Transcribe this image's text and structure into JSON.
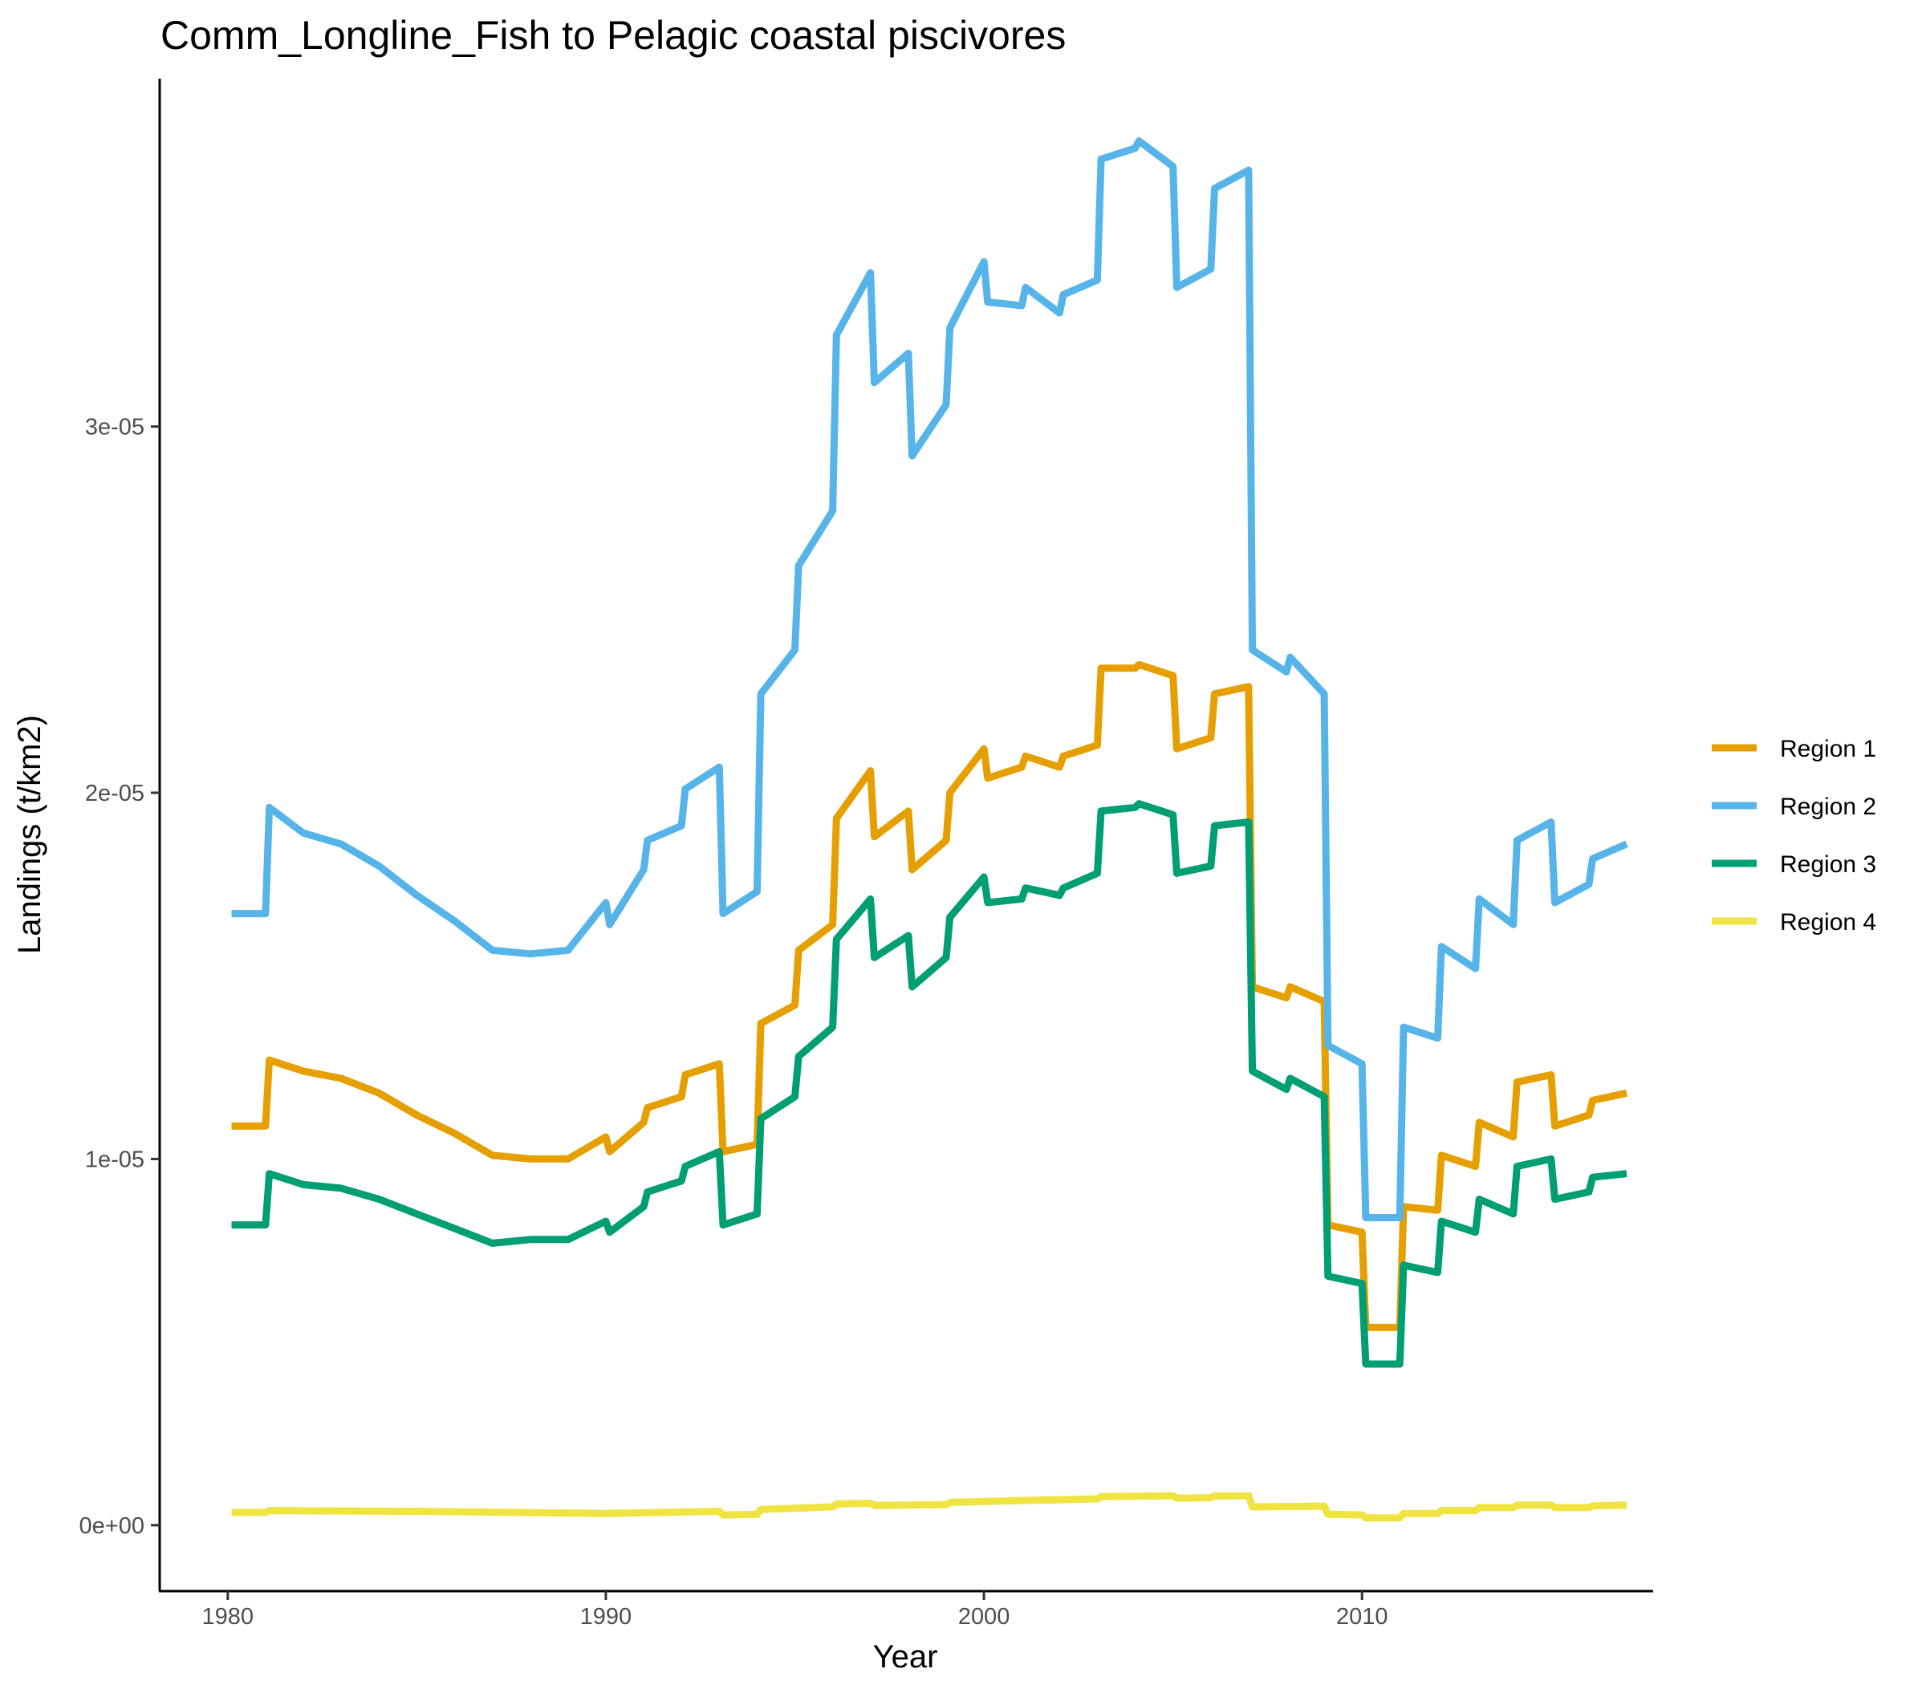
{
  "chart_data": {
    "type": "line",
    "title": "Comm_Longline_Fish to Pelagic coastal piscivores",
    "xlabel": "Year",
    "ylabel": "Landings (t/km2)",
    "xlim": [
      1978.2,
      2017.7
    ],
    "ylim": [
      -1.8e-06,
      3.95e-05
    ],
    "x_ticks": [
      1980,
      1990,
      2000,
      2010
    ],
    "x_tick_labels": [
      "1980",
      "1990",
      "2000",
      "2010"
    ],
    "y_ticks": [
      0,
      1e-05,
      2e-05,
      3e-05
    ],
    "y_tick_labels": [
      "0e+00",
      "1e-05",
      "2e-05",
      "3e-05"
    ],
    "legend_position": "right",
    "grid": false,
    "series": [
      {
        "name": "Region 1",
        "color": "#E69F00",
        "points": [
          [
            1980.1,
            1.09e-05
          ],
          [
            1981,
            1.09e-05
          ],
          [
            1981.1,
            1.27e-05
          ],
          [
            1982,
            1.24e-05
          ],
          [
            1983,
            1.22e-05
          ],
          [
            1984,
            1.18e-05
          ],
          [
            1985,
            1.12e-05
          ],
          [
            1986,
            1.07e-05
          ],
          [
            1987,
            1.01e-05
          ],
          [
            1988,
            1e-05
          ],
          [
            1989,
            1e-05
          ],
          [
            1990,
            1.06e-05
          ],
          [
            1990.1,
            1.02e-05
          ],
          [
            1991,
            1.1e-05
          ],
          [
            1991.1,
            1.14e-05
          ],
          [
            1992,
            1.17e-05
          ],
          [
            1992.1,
            1.23e-05
          ],
          [
            1993,
            1.26e-05
          ],
          [
            1993.1,
            1.02e-05
          ],
          [
            1994,
            1.04e-05
          ],
          [
            1994.1,
            1.37e-05
          ],
          [
            1995,
            1.42e-05
          ],
          [
            1995.1,
            1.57e-05
          ],
          [
            1996,
            1.64e-05
          ],
          [
            1996.1,
            1.93e-05
          ],
          [
            1997,
            2.06e-05
          ],
          [
            1997.1,
            1.88e-05
          ],
          [
            1998,
            1.95e-05
          ],
          [
            1998.1,
            1.79e-05
          ],
          [
            1999,
            1.87e-05
          ],
          [
            1999.1,
            2e-05
          ],
          [
            2000,
            2.12e-05
          ],
          [
            2000.1,
            2.04e-05
          ],
          [
            2001,
            2.07e-05
          ],
          [
            2001.1,
            2.1e-05
          ],
          [
            2002,
            2.07e-05
          ],
          [
            2002.1,
            2.1e-05
          ],
          [
            2003,
            2.13e-05
          ],
          [
            2003.1,
            2.34e-05
          ],
          [
            2004,
            2.34e-05
          ],
          [
            2004.1,
            2.35e-05
          ],
          [
            2005,
            2.32e-05
          ],
          [
            2005.1,
            2.12e-05
          ],
          [
            2006,
            2.15e-05
          ],
          [
            2006.1,
            2.27e-05
          ],
          [
            2007,
            2.29e-05
          ],
          [
            2007.1,
            1.47e-05
          ],
          [
            2008,
            1.44e-05
          ],
          [
            2008.1,
            1.47e-05
          ],
          [
            2009,
            1.43e-05
          ],
          [
            2009.1,
            8.2e-06
          ],
          [
            2010,
            8e-06
          ],
          [
            2010.1,
            5.4e-06
          ],
          [
            2011,
            5.4e-06
          ],
          [
            2011.1,
            8.7e-06
          ],
          [
            2012,
            8.6e-06
          ],
          [
            2012.1,
            1.01e-05
          ],
          [
            2013,
            9.8e-06
          ],
          [
            2013.1,
            1.1e-05
          ],
          [
            2014,
            1.06e-05
          ],
          [
            2014.1,
            1.21e-05
          ],
          [
            2015,
            1.23e-05
          ],
          [
            2015.1,
            1.09e-05
          ],
          [
            2016,
            1.12e-05
          ],
          [
            2016.1,
            1.16e-05
          ],
          [
            2017,
            1.18e-05
          ]
        ]
      },
      {
        "name": "Region 2",
        "color": "#56B4E9",
        "points": [
          [
            1980.1,
            1.67e-05
          ],
          [
            1981,
            1.67e-05
          ],
          [
            1981.1,
            1.96e-05
          ],
          [
            1982,
            1.89e-05
          ],
          [
            1983,
            1.86e-05
          ],
          [
            1984,
            1.8e-05
          ],
          [
            1985,
            1.72e-05
          ],
          [
            1986,
            1.65e-05
          ],
          [
            1987,
            1.57e-05
          ],
          [
            1988,
            1.56e-05
          ],
          [
            1989,
            1.57e-05
          ],
          [
            1990,
            1.7e-05
          ],
          [
            1990.1,
            1.64e-05
          ],
          [
            1991,
            1.79e-05
          ],
          [
            1991.1,
            1.87e-05
          ],
          [
            1992,
            1.91e-05
          ],
          [
            1992.1,
            2.01e-05
          ],
          [
            1993,
            2.07e-05
          ],
          [
            1993.1,
            1.67e-05
          ],
          [
            1994,
            1.73e-05
          ],
          [
            1994.1,
            2.27e-05
          ],
          [
            1995,
            2.39e-05
          ],
          [
            1995.1,
            2.62e-05
          ],
          [
            1996,
            2.77e-05
          ],
          [
            1996.1,
            3.25e-05
          ],
          [
            1997,
            3.42e-05
          ],
          [
            1997.1,
            3.12e-05
          ],
          [
            1998,
            3.2e-05
          ],
          [
            1998.1,
            2.92e-05
          ],
          [
            1999,
            3.06e-05
          ],
          [
            1999.1,
            3.27e-05
          ],
          [
            2000,
            3.45e-05
          ],
          [
            2000.1,
            3.34e-05
          ],
          [
            2001,
            3.33e-05
          ],
          [
            2001.1,
            3.38e-05
          ],
          [
            2002,
            3.31e-05
          ],
          [
            2002.1,
            3.36e-05
          ],
          [
            2003,
            3.4e-05
          ],
          [
            2003.1,
            3.73e-05
          ],
          [
            2004,
            3.76e-05
          ],
          [
            2004.1,
            3.78e-05
          ],
          [
            2005,
            3.71e-05
          ],
          [
            2005.1,
            3.38e-05
          ],
          [
            2006,
            3.43e-05
          ],
          [
            2006.1,
            3.65e-05
          ],
          [
            2007,
            3.7e-05
          ],
          [
            2007.1,
            2.39e-05
          ],
          [
            2008,
            2.33e-05
          ],
          [
            2008.1,
            2.37e-05
          ],
          [
            2009,
            2.27e-05
          ],
          [
            2009.1,
            1.31e-05
          ],
          [
            2010,
            1.26e-05
          ],
          [
            2010.1,
            8.4e-06
          ],
          [
            2011,
            8.4e-06
          ],
          [
            2011.1,
            1.36e-05
          ],
          [
            2012,
            1.33e-05
          ],
          [
            2012.1,
            1.58e-05
          ],
          [
            2013,
            1.52e-05
          ],
          [
            2013.1,
            1.71e-05
          ],
          [
            2014,
            1.64e-05
          ],
          [
            2014.1,
            1.87e-05
          ],
          [
            2015,
            1.92e-05
          ],
          [
            2015.1,
            1.7e-05
          ],
          [
            2016,
            1.75e-05
          ],
          [
            2016.1,
            1.82e-05
          ],
          [
            2017,
            1.86e-05
          ]
        ]
      },
      {
        "name": "Region 3",
        "color": "#009E73",
        "points": [
          [
            1980.1,
            8.2e-06
          ],
          [
            1981,
            8.2e-06
          ],
          [
            1981.1,
            9.6e-06
          ],
          [
            1982,
            9.3e-06
          ],
          [
            1983,
            9.2e-06
          ],
          [
            1984,
            8.9e-06
          ],
          [
            1985,
            8.5e-06
          ],
          [
            1986,
            8.1e-06
          ],
          [
            1987,
            7.7e-06
          ],
          [
            1988,
            7.8e-06
          ],
          [
            1989,
            7.8e-06
          ],
          [
            1990,
            8.3e-06
          ],
          [
            1990.1,
            8e-06
          ],
          [
            1991,
            8.7e-06
          ],
          [
            1991.1,
            9.1e-06
          ],
          [
            1992,
            9.4e-06
          ],
          [
            1992.1,
            9.8e-06
          ],
          [
            1993,
            1.02e-05
          ],
          [
            1993.1,
            8.2e-06
          ],
          [
            1994,
            8.5e-06
          ],
          [
            1994.1,
            1.11e-05
          ],
          [
            1995,
            1.17e-05
          ],
          [
            1995.1,
            1.28e-05
          ],
          [
            1996,
            1.36e-05
          ],
          [
            1996.1,
            1.6e-05
          ],
          [
            1997,
            1.71e-05
          ],
          [
            1997.1,
            1.55e-05
          ],
          [
            1998,
            1.61e-05
          ],
          [
            1998.1,
            1.47e-05
          ],
          [
            1999,
            1.55e-05
          ],
          [
            1999.1,
            1.66e-05
          ],
          [
            2000,
            1.77e-05
          ],
          [
            2000.1,
            1.7e-05
          ],
          [
            2001,
            1.71e-05
          ],
          [
            2001.1,
            1.74e-05
          ],
          [
            2002,
            1.72e-05
          ],
          [
            2002.1,
            1.74e-05
          ],
          [
            2003,
            1.78e-05
          ],
          [
            2003.1,
            1.95e-05
          ],
          [
            2004,
            1.96e-05
          ],
          [
            2004.1,
            1.97e-05
          ],
          [
            2005,
            1.94e-05
          ],
          [
            2005.1,
            1.78e-05
          ],
          [
            2006,
            1.8e-05
          ],
          [
            2006.1,
            1.91e-05
          ],
          [
            2007,
            1.92e-05
          ],
          [
            2007.1,
            1.24e-05
          ],
          [
            2008,
            1.19e-05
          ],
          [
            2008.1,
            1.22e-05
          ],
          [
            2009,
            1.17e-05
          ],
          [
            2009.1,
            6.8e-06
          ],
          [
            2010,
            6.6e-06
          ],
          [
            2010.1,
            4.4e-06
          ],
          [
            2011,
            4.4e-06
          ],
          [
            2011.1,
            7.1e-06
          ],
          [
            2012,
            6.9e-06
          ],
          [
            2012.1,
            8.3e-06
          ],
          [
            2013,
            8e-06
          ],
          [
            2013.1,
            8.9e-06
          ],
          [
            2014,
            8.5e-06
          ],
          [
            2014.1,
            9.8e-06
          ],
          [
            2015,
            1e-05
          ],
          [
            2015.1,
            8.9e-06
          ],
          [
            2016,
            9.1e-06
          ],
          [
            2016.1,
            9.5e-06
          ],
          [
            2017,
            9.6e-06
          ]
        ]
      },
      {
        "name": "Region 4",
        "color": "#F0E442",
        "points": [
          [
            1980.1,
            3.5e-07
          ],
          [
            1981,
            3.5e-07
          ],
          [
            1981.1,
            4e-07
          ],
          [
            1985,
            3.8e-07
          ],
          [
            1990,
            3.2e-07
          ],
          [
            1993,
            3.8e-07
          ],
          [
            1993.1,
            2.8e-07
          ],
          [
            1994,
            3e-07
          ],
          [
            1994.1,
            4.3e-07
          ],
          [
            1996,
            5e-07
          ],
          [
            1996.1,
            5.8e-07
          ],
          [
            1997,
            6e-07
          ],
          [
            1997.1,
            5.4e-07
          ],
          [
            1999,
            5.6e-07
          ],
          [
            1999.1,
            6.2e-07
          ],
          [
            2000,
            6.5e-07
          ],
          [
            2003,
            7.2e-07
          ],
          [
            2003.1,
            7.8e-07
          ],
          [
            2005,
            8e-07
          ],
          [
            2005.1,
            7.4e-07
          ],
          [
            2006,
            7.5e-07
          ],
          [
            2006.1,
            8e-07
          ],
          [
            2007,
            8e-07
          ],
          [
            2007.1,
            5e-07
          ],
          [
            2009,
            5.2e-07
          ],
          [
            2009.1,
            3e-07
          ],
          [
            2010,
            2.8e-07
          ],
          [
            2010.1,
            2e-07
          ],
          [
            2011,
            2e-07
          ],
          [
            2011.1,
            3.2e-07
          ],
          [
            2012,
            3.2e-07
          ],
          [
            2012.1,
            4e-07
          ],
          [
            2013,
            4e-07
          ],
          [
            2013.1,
            4.8e-07
          ],
          [
            2014,
            4.8e-07
          ],
          [
            2014.1,
            5.5e-07
          ],
          [
            2015,
            5.5e-07
          ],
          [
            2015.1,
            4.8e-07
          ],
          [
            2016,
            4.8e-07
          ],
          [
            2016.1,
            5.3e-07
          ],
          [
            2017,
            5.5e-07
          ]
        ]
      }
    ]
  }
}
